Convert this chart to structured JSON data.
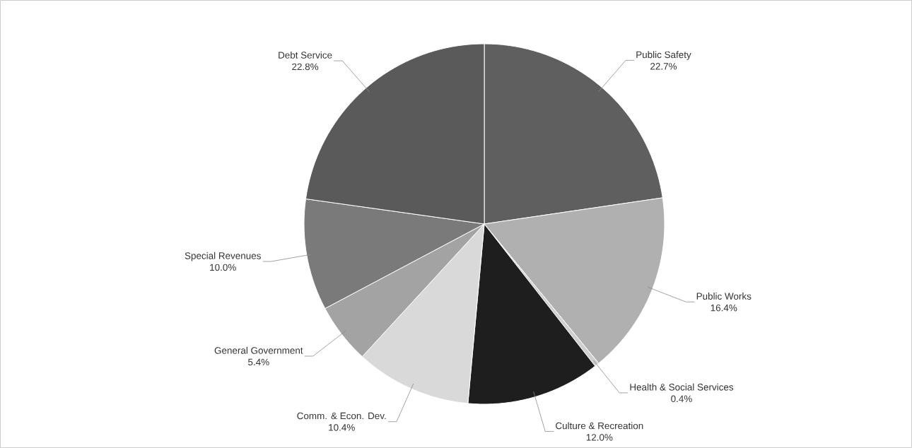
{
  "chart_data": {
    "type": "pie",
    "categories": [
      "Public Safety",
      "Public Works",
      "Health & Social Services",
      "Culture & Recreation",
      "Comm. & Econ. Dev.",
      "General Government",
      "Special Revenues",
      "Debt Service"
    ],
    "values": [
      22.7,
      16.4,
      0.4,
      12.0,
      10.4,
      5.4,
      10.0,
      22.8
    ],
    "value_labels": [
      "22.7%",
      "16.4%",
      "0.4%",
      "12.0%",
      "10.4%",
      "5.4%",
      "10.0%",
      "22.8%"
    ],
    "colors": [
      "#5f5f5f",
      "#b0b0b0",
      "#cfcfcf",
      "#1e1e1e",
      "#d9d9d9",
      "#a3a3a3",
      "#7a7a7a",
      "#5a5a5a"
    ]
  }
}
